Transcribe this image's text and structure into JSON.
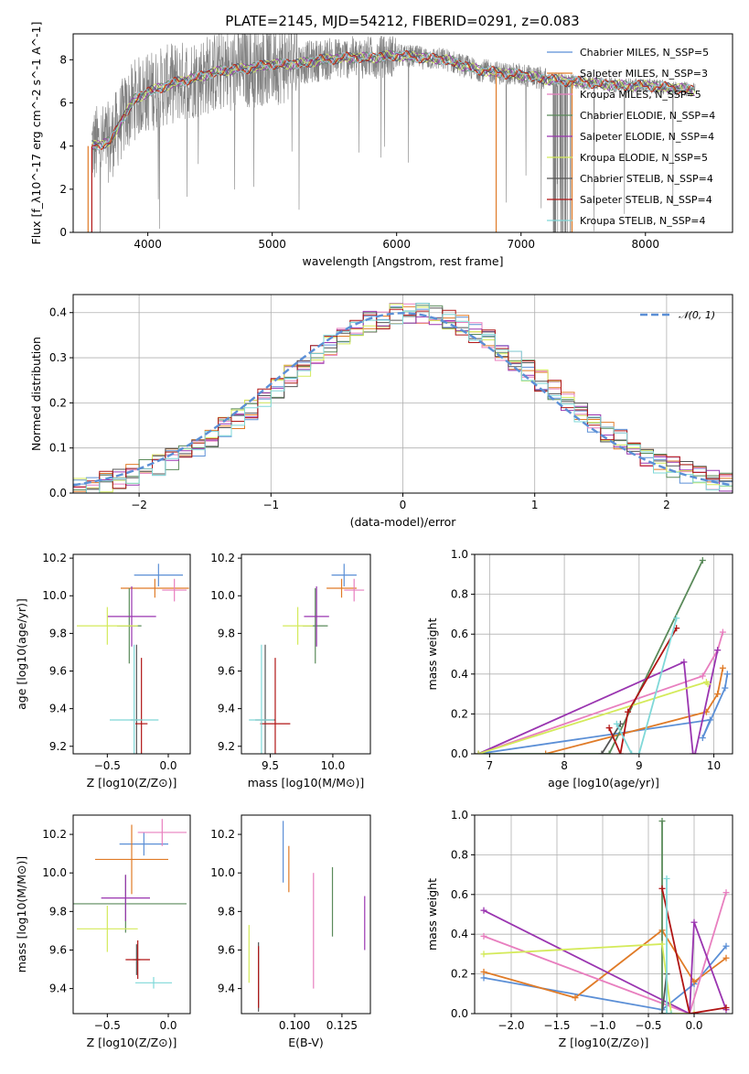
{
  "figure_title": "PLATE=2145, MJD=54212, FIBERID=0291, z=0.083",
  "series_colors": [
    "#5b8fd6",
    "#e07b27",
    "#e87fbf",
    "#5a8a5a",
    "#9a35b0",
    "#d4ea5a",
    "#555555",
    "#b01515",
    "#7fd8d8"
  ],
  "chart_data": [
    {
      "id": "spectrum",
      "type": "line",
      "xlabel": "wavelength [Angstrom, rest frame]",
      "ylabel": "Flux [f_λ10^-17 erg cm^-2 s^-1 A^-1]",
      "xlim": [
        3400,
        8700
      ],
      "ylim": [
        0,
        9.2
      ],
      "xticks": [
        "4000",
        "5000",
        "6000",
        "7000",
        "8000"
      ],
      "yticks": [
        "0",
        "2",
        "4",
        "6",
        "8"
      ],
      "legend_position": "upper-right",
      "legend": [
        "Chabrier MILES, N_SSP=5",
        "Salpeter MILES, N_SSP=3",
        "Kroupa MILES, N_SSP=5",
        "Chabrier ELODIE, N_SSP=4",
        "Salpeter ELODIE, N_SSP=4",
        "Kroupa ELODIE, N_SSP=5",
        "Chabrier STELIB, N_SSP=4",
        "Salpeter STELIB, N_SSP=4",
        "Kroupa STELIB, N_SSP=4"
      ],
      "continuum": {
        "x": [
          3550,
          3700,
          3800,
          3900,
          4000,
          4200,
          4400,
          4600,
          4800,
          5000,
          5200,
          5400,
          5600,
          5800,
          6000,
          6200,
          6400,
          6600,
          6800,
          7000,
          7200,
          7400,
          7600,
          7800,
          8000,
          8200,
          8400
        ],
        "y": [
          4.0,
          4.2,
          5.3,
          6.2,
          6.5,
          6.9,
          7.2,
          7.5,
          7.6,
          7.8,
          7.8,
          8.0,
          8.1,
          8.1,
          8.2,
          8.1,
          8.0,
          7.6,
          7.4,
          7.3,
          7.1,
          7.0,
          6.9,
          6.8,
          6.8,
          6.7,
          6.6
        ]
      },
      "fitted_range": [
        3550,
        8400
      ]
    },
    {
      "id": "residuals",
      "type": "histogram",
      "xlabel": "(data-model)/error",
      "ylabel": "Normed distribution",
      "xlim": [
        -2.5,
        2.5
      ],
      "ylim": [
        0,
        0.44
      ],
      "xticks": [
        "−2",
        "−1",
        "0",
        "1",
        "2"
      ],
      "yticks": [
        "0.0",
        "0.1",
        "0.2",
        "0.3",
        "0.4"
      ],
      "bin_width": 0.1,
      "reference_label": "𝒩(0, 1)",
      "reference_color": "#5b8fd6",
      "grid": true
    },
    {
      "id": "age-vs-Z",
      "type": "errorbar",
      "xlabel": "Z [log10(Z/Z⊙)]",
      "ylabel": "age [log10(age/yr)]",
      "xlim": [
        -0.78,
        0.18
      ],
      "ylim": [
        9.16,
        10.22
      ],
      "xticks": [
        "−0.5",
        "0.0"
      ],
      "yticks": [
        "9.2",
        "9.4",
        "9.6",
        "9.8",
        "10.0",
        "10.2"
      ],
      "points": [
        {
          "x": -0.08,
          "y": 10.11,
          "xerr": 0.2,
          "yerr": 0.06
        },
        {
          "x": -0.11,
          "y": 10.04,
          "xerr": 0.28,
          "yerr": 0.05
        },
        {
          "x": 0.05,
          "y": 10.03,
          "xerr": 0.1,
          "yerr": 0.06
        },
        {
          "x": -0.32,
          "y": 9.84,
          "xerr": 0.1,
          "yerr": 0.2
        },
        {
          "x": -0.3,
          "y": 9.89,
          "xerr": 0.2,
          "yerr": 0.16
        },
        {
          "x": -0.5,
          "y": 9.84,
          "xerr": 0.25,
          "yerr": 0.1
        },
        {
          "x": -0.26,
          "y": 9.34,
          "xerr": 0.05,
          "yerr": 0.4
        },
        {
          "x": -0.22,
          "y": 9.32,
          "xerr": 0.05,
          "yerr": 0.35
        },
        {
          "x": -0.28,
          "y": 9.34,
          "xerr": 0.2,
          "yerr": 0.4
        }
      ]
    },
    {
      "id": "age-vs-mass",
      "type": "errorbar",
      "xlabel": "mass [log10(M/M⊙)]",
      "ylabel": "",
      "xlim": [
        9.27,
        10.3
      ],
      "ylim": [
        9.16,
        10.22
      ],
      "xticks": [
        "9.5",
        "10.0"
      ],
      "yticks": [
        "9.2",
        "9.4",
        "9.6",
        "9.8",
        "10.0",
        "10.2"
      ],
      "points": [
        {
          "x": 10.09,
          "y": 10.11,
          "xerr": 0.1,
          "yerr": 0.06
        },
        {
          "x": 10.07,
          "y": 10.04,
          "xerr": 0.12,
          "yerr": 0.05
        },
        {
          "x": 10.17,
          "y": 10.03,
          "xerr": 0.08,
          "yerr": 0.06
        },
        {
          "x": 9.86,
          "y": 9.84,
          "xerr": 0.1,
          "yerr": 0.2
        },
        {
          "x": 9.87,
          "y": 9.89,
          "xerr": 0.1,
          "yerr": 0.16
        },
        {
          "x": 9.72,
          "y": 9.84,
          "xerr": 0.12,
          "yerr": 0.1
        },
        {
          "x": 9.46,
          "y": 9.34,
          "xerr": 0.08,
          "yerr": 0.4
        },
        {
          "x": 9.54,
          "y": 9.32,
          "xerr": 0.12,
          "yerr": 0.35
        },
        {
          "x": 9.43,
          "y": 9.34,
          "xerr": 0.1,
          "yerr": 0.4
        }
      ]
    },
    {
      "id": "weight-vs-age",
      "type": "line",
      "xlabel": "age [log10(age/yr)]",
      "ylabel": "mass weight",
      "xlim": [
        6.8,
        10.25
      ],
      "ylim": [
        0,
        1
      ],
      "xticks": [
        "7",
        "8",
        "9",
        "10"
      ],
      "yticks": [
        "0.0",
        "0.2",
        "0.4",
        "0.6",
        "0.8",
        "1.0"
      ],
      "grid": true,
      "series": [
        {
          "x": [
            6.85,
            9.95,
            9.85,
            10.15,
            10.18
          ],
          "y": [
            0.0,
            0.17,
            0.08,
            0.33,
            0.4
          ]
        },
        {
          "x": [
            7.75,
            9.9,
            10.05,
            10.12
          ],
          "y": [
            0.0,
            0.21,
            0.3,
            0.43
          ]
        },
        {
          "x": [
            6.85,
            9.85,
            10.05,
            10.12
          ],
          "y": [
            0.0,
            0.39,
            0.52,
            0.61
          ]
        },
        {
          "x": [
            6.85,
            8.6,
            9.85
          ],
          "y": [
            0.0,
            0.0,
            0.97
          ]
        },
        {
          "x": [
            6.85,
            9.6,
            9.72,
            9.75,
            10.05
          ],
          "y": [
            0.0,
            0.46,
            0.0,
            0.0,
            0.52
          ]
        },
        {
          "x": [
            6.85,
            9.9,
            9.92
          ],
          "y": [
            0.0,
            0.36,
            0.35
          ]
        },
        {
          "x": [
            8.5,
            8.75
          ],
          "y": [
            0.0,
            0.15
          ]
        },
        {
          "x": [
            8.6,
            8.75,
            8.85,
            9.5
          ],
          "y": [
            0.13,
            0.0,
            0.21,
            0.63
          ]
        },
        {
          "x": [
            8.7,
            8.9,
            9.0,
            9.5
          ],
          "y": [
            0.15,
            0.0,
            0.0,
            0.68
          ]
        }
      ]
    },
    {
      "id": "mass-vs-Z",
      "type": "errorbar",
      "xlabel": "Z [log10(Z/Z⊙)]",
      "ylabel": "mass [log10(M/M⊙)]",
      "xlim": [
        -0.78,
        0.18
      ],
      "ylim": [
        9.27,
        10.3
      ],
      "xticks": [
        "−0.5",
        "0.0"
      ],
      "yticks": [
        "9.4",
        "9.6",
        "9.8",
        "10.0",
        "10.2"
      ],
      "points": [
        {
          "x": -0.2,
          "y": 10.15,
          "xerr": 0.2,
          "yerr": 0.06
        },
        {
          "x": -0.3,
          "y": 10.07,
          "xerr": 0.3,
          "yerr": 0.18
        },
        {
          "x": -0.05,
          "y": 10.21,
          "xerr": 0.2,
          "yerr": 0.07
        },
        {
          "x": -0.35,
          "y": 9.84,
          "xerr": 0.5,
          "yerr": 0.15
        },
        {
          "x": -0.35,
          "y": 9.87,
          "xerr": 0.2,
          "yerr": 0.12
        },
        {
          "x": -0.5,
          "y": 9.71,
          "xerr": 0.25,
          "yerr": 0.12
        },
        {
          "x": -0.26,
          "y": 9.55,
          "xerr": 0.03,
          "yerr": 0.08
        },
        {
          "x": -0.25,
          "y": 9.55,
          "xerr": 0.1,
          "yerr": 0.1
        },
        {
          "x": -0.12,
          "y": 9.43,
          "xerr": 0.15,
          "yerr": 0.03
        }
      ]
    },
    {
      "id": "ebv",
      "type": "errorbar",
      "xlabel": "E(B-V)",
      "ylabel": "",
      "xlim": [
        0.072,
        0.14
      ],
      "ylim": [
        9.27,
        10.3
      ],
      "xticks": [
        "0.100",
        "0.125"
      ],
      "yticks": [
        "9.4",
        "9.6",
        "9.8",
        "10.0",
        "10.2"
      ],
      "points": [
        {
          "x": 0.094,
          "y": 10.11,
          "yerr": 0.16
        },
        {
          "x": 0.097,
          "y": 10.02,
          "yerr": 0.12
        },
        {
          "x": 0.11,
          "y": 9.7,
          "yerr": 0.3
        },
        {
          "x": 0.12,
          "y": 9.85,
          "yerr": 0.18
        },
        {
          "x": 0.137,
          "y": 9.74,
          "yerr": 0.14
        },
        {
          "x": 0.076,
          "y": 9.58,
          "yerr": 0.15
        },
        {
          "x": 0.081,
          "y": 9.46,
          "yerr": 0.18
        },
        {
          "x": 0.081,
          "y": 9.46,
          "yerr": 0.16
        }
      ]
    },
    {
      "id": "weight-vs-Z",
      "type": "line",
      "xlabel": "Z [log10(Z/Z⊙)]",
      "ylabel": "mass weight",
      "xlim": [
        -2.4,
        0.42
      ],
      "ylim": [
        0,
        1
      ],
      "xticks": [
        "−2.0",
        "−1.5",
        "−1.0",
        "−0.5",
        "0.0"
      ],
      "yticks": [
        "0.0",
        "0.2",
        "0.4",
        "0.6",
        "0.8",
        "1.0"
      ],
      "grid": true,
      "series": [
        {
          "x": [
            -2.3,
            -0.35,
            0.0,
            0.35
          ],
          "y": [
            0.18,
            0.02,
            0.15,
            0.34
          ]
        },
        {
          "x": [
            -2.3,
            -1.3,
            -0.35,
            0.0,
            0.35
          ],
          "y": [
            0.21,
            0.08,
            0.42,
            0.16,
            0.28
          ]
        },
        {
          "x": [
            -2.3,
            -0.05,
            0.35
          ],
          "y": [
            0.39,
            0.0,
            0.61
          ]
        },
        {
          "x": [
            -0.35,
            -0.35,
            -0.3
          ],
          "y": [
            0.97,
            0.0,
            0.0
          ]
        },
        {
          "x": [
            -2.3,
            -0.05,
            0.0,
            0.35
          ],
          "y": [
            0.52,
            0.0,
            0.46,
            0.02
          ]
        },
        {
          "x": [
            -2.3,
            -0.35,
            -0.25,
            0.0
          ],
          "y": [
            0.3,
            0.35,
            0.0,
            0.0
          ]
        },
        {
          "x": [
            -0.35,
            -0.3
          ],
          "y": [
            0.0,
            0.2
          ]
        },
        {
          "x": [
            -0.35,
            -0.05,
            0.35
          ],
          "y": [
            0.63,
            0.0,
            0.03
          ]
        },
        {
          "x": [
            -0.3,
            -0.3,
            -0.25
          ],
          "y": [
            0.68,
            0.0,
            0.0
          ]
        }
      ]
    }
  ]
}
